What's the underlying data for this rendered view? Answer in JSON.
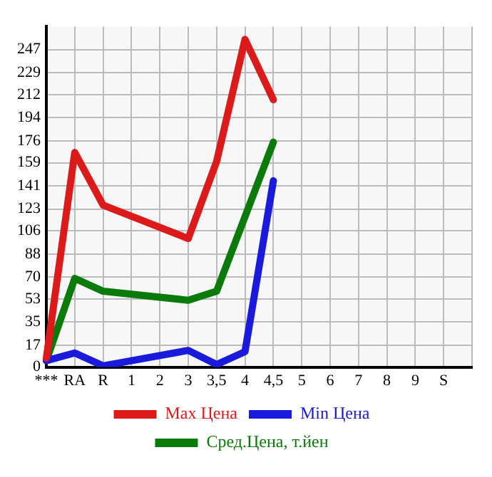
{
  "chart_data": {
    "type": "line",
    "categories": [
      "***",
      "RA",
      "R",
      "1",
      "2",
      "3",
      "3,5",
      "4",
      "4,5",
      "5",
      "6",
      "7",
      "8",
      "9",
      "S",
      null
    ],
    "series": [
      {
        "name": "Max Цена",
        "color": "#dd1a1a",
        "values": [
          7,
          167,
          126,
          null,
          null,
          100,
          160,
          255,
          208,
          null,
          null,
          null,
          null,
          null,
          null,
          null
        ]
      },
      {
        "name": "Min Цена",
        "color": "#1a1add",
        "values": [
          5,
          11,
          1,
          null,
          null,
          13,
          2,
          12,
          145,
          null,
          null,
          null,
          null,
          null,
          null,
          null
        ]
      },
      {
        "name": "Сред.Цена, т.йен",
        "color": "#0a7a0a",
        "values": [
          5,
          69,
          59,
          null,
          null,
          52,
          59,
          null,
          175,
          null,
          null,
          null,
          null,
          null,
          null,
          null
        ]
      }
    ],
    "ylim": [
      0,
      265
    ],
    "yticks": [
      0,
      17,
      35,
      53,
      70,
      88,
      106,
      123,
      141,
      159,
      176,
      194,
      212,
      229,
      247
    ],
    "grid": true,
    "legend": "bottom",
    "marker": "none",
    "line_style": "solid"
  }
}
